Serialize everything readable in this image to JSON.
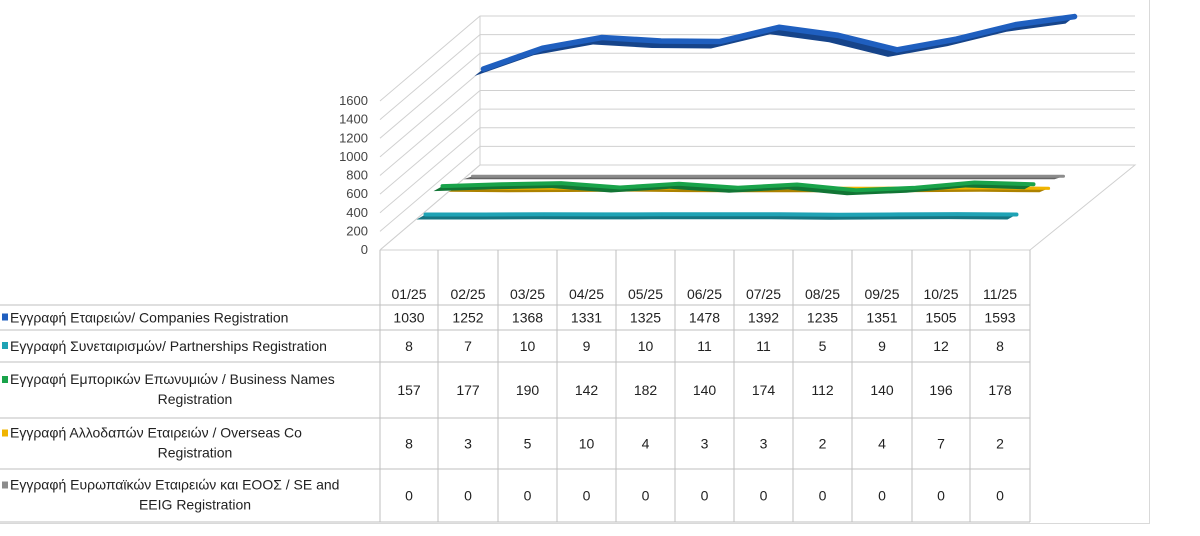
{
  "chart_data": {
    "type": "line",
    "title": "",
    "xlabel": "",
    "ylabel": "",
    "ylim": [
      0,
      1600
    ],
    "yticks": [
      "1600",
      "1400",
      "1200",
      "1000",
      "800",
      "600",
      "400",
      "200",
      "0"
    ],
    "categories": [
      "01/25",
      "02/25",
      "03/25",
      "04/25",
      "05/25",
      "06/25",
      "07/25",
      "08/25",
      "09/25",
      "10/25",
      "11/25"
    ],
    "series": [
      {
        "name_lines": [
          "Εγγραφή Εταιρειών/ Companies Registration"
        ],
        "color": "#1f5fbf",
        "values": [
          1030,
          1252,
          1368,
          1331,
          1325,
          1478,
          1392,
          1235,
          1351,
          1505,
          1593
        ]
      },
      {
        "name_lines": [
          "Εγγραφή Συνεταιρισμών/ Partnerships Registration"
        ],
        "color": "#1fa3b5",
        "values": [
          8,
          7,
          10,
          9,
          10,
          11,
          11,
          5,
          9,
          12,
          8
        ]
      },
      {
        "name_lines": [
          "Εγγραφή Εμπορικών Επωνυμιών / Business Names",
          "Registration"
        ],
        "color": "#19a34a",
        "values": [
          157,
          177,
          190,
          142,
          182,
          140,
          174,
          112,
          140,
          196,
          178
        ]
      },
      {
        "name_lines": [
          "Εγγραφή Αλλοδαπών Εταιρειών / Overseas Co",
          "Registration"
        ],
        "color": "#f0b400",
        "values": [
          8,
          3,
          5,
          10,
          4,
          3,
          3,
          2,
          4,
          7,
          2
        ]
      },
      {
        "name_lines": [
          "Εγγραφή Ευρωπαϊκών Εταιρειών και ΕΟΟΣ / SE and",
          "EEIG Registration"
        ],
        "color": "#8c8c8c",
        "values": [
          0,
          0,
          0,
          0,
          0,
          0,
          0,
          0,
          0,
          0,
          0
        ]
      }
    ]
  }
}
